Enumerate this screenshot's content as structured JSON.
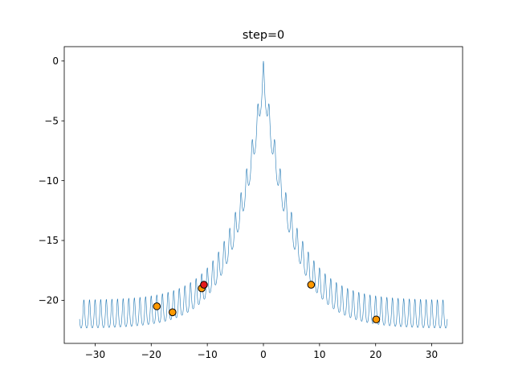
{
  "chart_data": {
    "type": "line",
    "title": "step=0",
    "xlabel": "",
    "ylabel": "",
    "xlim": [
      -35.5,
      35.5
    ],
    "ylim": [
      -23.6,
      1.2
    ],
    "xticks": [
      -30,
      -20,
      -10,
      0,
      10,
      20,
      30
    ],
    "xtick_labels": [
      "−30",
      "−20",
      "−10",
      "0",
      "10",
      "20",
      "30"
    ],
    "yticks": [
      0,
      -5,
      -10,
      -15,
      -20
    ],
    "ytick_labels": [
      "0",
      "−5",
      "−10",
      "−15",
      "−20"
    ],
    "grid": false,
    "legend": "none",
    "colors": {
      "curve": "#1f77b4",
      "population_fill": "#ff9900",
      "best_fill": "#e31a1c",
      "marker_edge": "#000000"
    },
    "series": [
      {
        "kind": "function_curve",
        "function": "-20*exp(-0.2*|x|) - exp(cos(2*pi*x)) + 20 + e shifted so peak is 0 (negated Ackley-style)",
        "x_range": [
          -32.768,
          32.768
        ],
        "peak_value": 0,
        "tail_min": -22.0,
        "tail_max": -20.0
      },
      {
        "kind": "points",
        "role": "population",
        "points": [
          {
            "x": -19.0,
            "y": -20.5
          },
          {
            "x": -16.2,
            "y": -21.0
          },
          {
            "x": -11.0,
            "y": -19.0
          },
          {
            "x": 8.5,
            "y": -18.7
          },
          {
            "x": 20.1,
            "y": -21.6
          }
        ]
      },
      {
        "kind": "points",
        "role": "best",
        "points": [
          {
            "x": -10.6,
            "y": -18.7
          }
        ]
      }
    ]
  }
}
